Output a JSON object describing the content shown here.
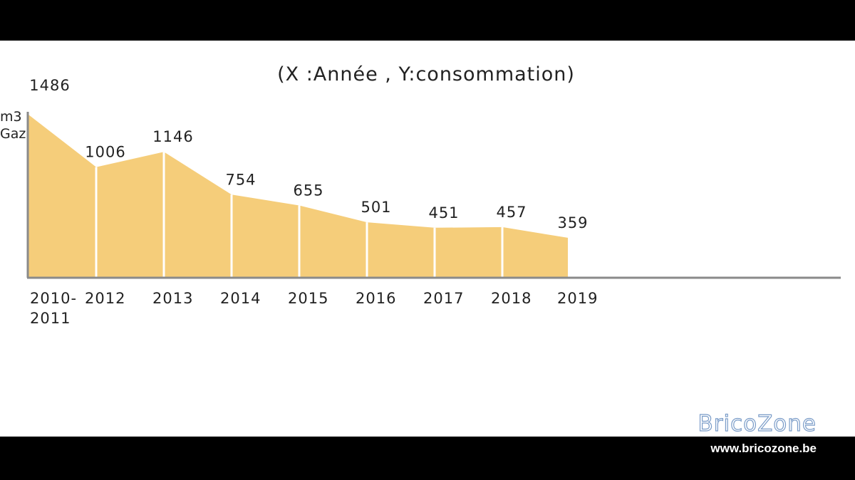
{
  "chart_data": {
    "type": "area",
    "title": "(X :Année , Y:consommation)",
    "ylabel_lines": [
      "m3",
      "Gaz"
    ],
    "categories": [
      "2010-\n2011",
      "2012",
      "2013",
      "2014",
      "2015",
      "2016",
      "2017",
      "2018",
      "2019"
    ],
    "values": [
      1486,
      1006,
      1146,
      754,
      655,
      501,
      451,
      457,
      359
    ],
    "ylim": [
      0,
      1486
    ],
    "grid": false,
    "fill_color": "#f5cd7a",
    "axis_color": "#8a8a8a"
  },
  "watermark": {
    "logo": "BricoZone",
    "url": "www.bricozone.be"
  }
}
